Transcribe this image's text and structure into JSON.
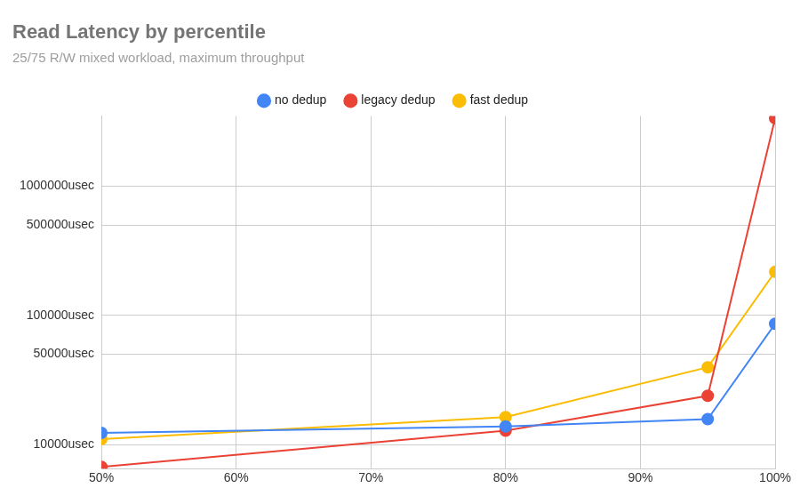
{
  "chart_data": {
    "type": "line",
    "title": "Read Latency by percentile",
    "subtitle": "25/75 R/W mixed workload, maximum throughput",
    "x": [
      50,
      80,
      95,
      100
    ],
    "series": [
      {
        "name": "no dedup",
        "color": "#4285f4",
        "values": [
          12300,
          13800,
          15700,
          86000
        ]
      },
      {
        "name": "legacy dedup",
        "color": "#ea4335",
        "values": [
          6700,
          12800,
          23800,
          3350000
        ]
      },
      {
        "name": "fast dedup",
        "color": "#fbbc04",
        "values": [
          11000,
          16300,
          39600,
          217000
        ]
      }
    ],
    "xlim": [
      50,
      100
    ],
    "xticks": [
      {
        "value": 50,
        "label": "50%"
      },
      {
        "value": 60,
        "label": "60%"
      },
      {
        "value": 70,
        "label": "70%"
      },
      {
        "value": 80,
        "label": "80%"
      },
      {
        "value": 90,
        "label": "90%"
      },
      {
        "value": 100,
        "label": "100%"
      }
    ],
    "ylim": [
      6500,
      3500000
    ],
    "yticks": [
      {
        "value": 10000,
        "label": "10000usec"
      },
      {
        "value": 50000,
        "label": "50000usec"
      },
      {
        "value": 100000,
        "label": "100000usec"
      },
      {
        "value": 500000,
        "label": "500000usec"
      },
      {
        "value": 1000000,
        "label": "1000000usec"
      }
    ],
    "log": "y",
    "grid": true,
    "legend": "top",
    "marker": "circle",
    "line_style": "solid"
  }
}
